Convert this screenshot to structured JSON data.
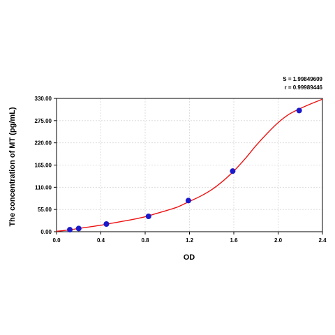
{
  "chart_data": {
    "type": "scatter",
    "xlabel": "OD",
    "ylabel": "The concentration of  MT (pg/mL)",
    "xlim": [
      0.0,
      2.4
    ],
    "ylim": [
      0.0,
      330.0
    ],
    "x_ticks": [
      "0.0",
      "0.4",
      "0.8",
      "1.2",
      "1.6",
      "2.0",
      "2.4"
    ],
    "x_tick_values": [
      0.0,
      0.4,
      0.8,
      1.2,
      1.6,
      2.0,
      2.4
    ],
    "y_ticks": [
      "0.00",
      "55.00",
      "110.00",
      "165.00",
      "220.00",
      "275.00",
      "330.00"
    ],
    "y_tick_values": [
      0,
      55,
      110,
      165,
      220,
      275,
      330
    ],
    "grid": true,
    "annotations": [
      "S = 1.99849609",
      "r = 0.99989446"
    ],
    "series": [
      {
        "type": "scatter",
        "marker_color": "#1a1acc",
        "x": [
          0.12,
          0.2,
          0.45,
          0.83,
          1.19,
          1.59,
          2.19
        ],
        "y": [
          5,
          8,
          19,
          38,
          77,
          150,
          300
        ]
      },
      {
        "type": "line",
        "line_color": "#ee1111",
        "x": [
          0.0,
          0.1,
          0.2,
          0.3,
          0.4,
          0.5,
          0.6,
          0.7,
          0.8,
          0.9,
          1.0,
          1.1,
          1.2,
          1.3,
          1.4,
          1.5,
          1.6,
          1.7,
          1.8,
          1.9,
          2.0,
          2.1,
          2.2,
          2.3,
          2.4
        ],
        "y": [
          1,
          4,
          8,
          12,
          16,
          21,
          26,
          31,
          37,
          45,
          53,
          62,
          75,
          88,
          104,
          125,
          150,
          180,
          213,
          243,
          270,
          291,
          305,
          317,
          328
        ]
      }
    ]
  }
}
